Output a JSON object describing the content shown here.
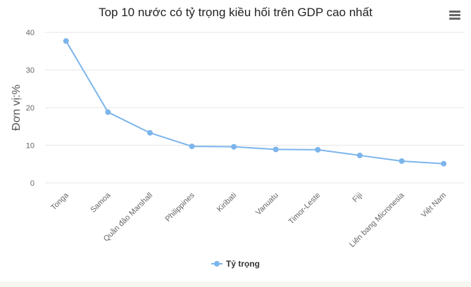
{
  "chart_data": {
    "type": "line",
    "title": "Top 10 nước có tỷ trọng kiều hối trên GDP cao nhất",
    "ylabel": "Đơn vị:%",
    "xlabel": "",
    "ylim": [
      0,
      40
    ],
    "yticks": [
      0,
      10,
      20,
      30,
      40
    ],
    "categories": [
      "Tonga",
      "Samoa",
      "Quần đảo Marshall",
      "Philippines",
      "Kiribati",
      "Vanuatu",
      "Timor-Leste",
      "Fiji",
      "Liên bang Micronesia",
      "Việt Nam"
    ],
    "series": [
      {
        "name": "Tỷ trọng",
        "values": [
          37.7,
          18.8,
          13.3,
          9.7,
          9.6,
          8.9,
          8.8,
          7.3,
          5.8,
          5.1
        ],
        "color": "#7cb5ec"
      }
    ],
    "grid": true,
    "legend": "bottom-center"
  },
  "menu": {
    "icon": "hamburger-menu-icon"
  }
}
